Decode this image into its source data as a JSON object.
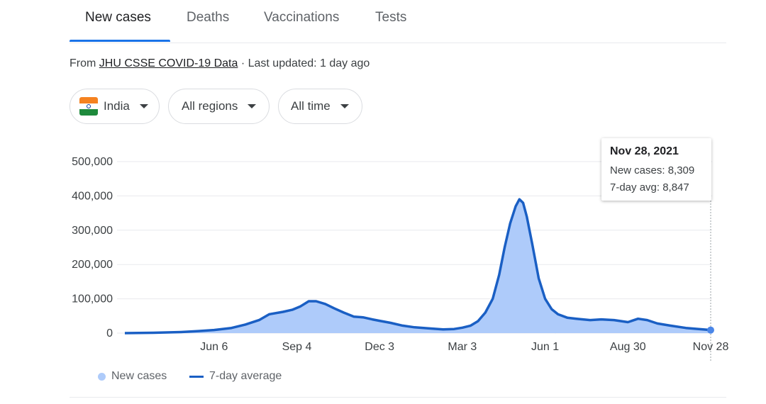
{
  "tabs": [
    {
      "label": "New cases",
      "active": true
    },
    {
      "label": "Deaths",
      "active": false
    },
    {
      "label": "Vaccinations",
      "active": false
    },
    {
      "label": "Tests",
      "active": false
    }
  ],
  "source": {
    "prefix": "From ",
    "link": "JHU CSSE COVID-19 Data",
    "suffix": " · Last updated: 1 day ago"
  },
  "filters": {
    "country": "India",
    "region": "All regions",
    "time": "All time"
  },
  "tooltip": {
    "date": "Nov 28, 2021",
    "new_cases": "New cases: 8,309",
    "avg": "7-day avg: 8,847"
  },
  "legend": {
    "new_cases": "New cases",
    "avg": "7-day average"
  },
  "colors": {
    "accent": "#1a73e8",
    "bars": "#aecbfa",
    "line": "#1a5fc4"
  },
  "chart_data": {
    "type": "area",
    "title": "",
    "xlabel": "",
    "ylabel": "",
    "ylim": [
      0,
      500000
    ],
    "y_ticks": [
      0,
      100000,
      200000,
      300000,
      400000,
      500000
    ],
    "y_tick_labels": [
      "0",
      "100,000",
      "200,000",
      "300,000",
      "400,000",
      "500,000"
    ],
    "x_ticks": [
      "2020-06-06",
      "2020-09-04",
      "2020-12-03",
      "2021-03-03",
      "2021-06-01",
      "2021-08-30",
      "2021-11-28"
    ],
    "x_tick_labels": [
      "Jun 6",
      "Sep 4",
      "Dec 3",
      "Mar 3",
      "Jun 1",
      "Aug 30",
      "Nov 28"
    ],
    "series": [
      {
        "name": "7-day average",
        "x": [
          "2020-03-01",
          "2020-04-01",
          "2020-05-01",
          "2020-05-20",
          "2020-06-06",
          "2020-06-25",
          "2020-07-10",
          "2020-07-25",
          "2020-08-05",
          "2020-08-20",
          "2020-08-30",
          "2020-09-08",
          "2020-09-17",
          "2020-09-25",
          "2020-10-05",
          "2020-10-15",
          "2020-10-25",
          "2020-11-05",
          "2020-11-15",
          "2020-11-25",
          "2020-12-03",
          "2020-12-15",
          "2020-12-28",
          "2021-01-10",
          "2021-01-25",
          "2021-02-10",
          "2021-02-22",
          "2021-03-03",
          "2021-03-12",
          "2021-03-20",
          "2021-03-28",
          "2021-04-05",
          "2021-04-12",
          "2021-04-18",
          "2021-04-24",
          "2021-04-30",
          "2021-05-04",
          "2021-05-08",
          "2021-05-12",
          "2021-05-18",
          "2021-05-25",
          "2021-06-01",
          "2021-06-08",
          "2021-06-15",
          "2021-06-25",
          "2021-07-05",
          "2021-07-20",
          "2021-08-01",
          "2021-08-15",
          "2021-08-30",
          "2021-09-10",
          "2021-09-20",
          "2021-10-01",
          "2021-10-15",
          "2021-11-01",
          "2021-11-15",
          "2021-11-28"
        ],
        "values": [
          0,
          1000,
          3000,
          6000,
          9000,
          15000,
          25000,
          38000,
          55000,
          62000,
          68000,
          78000,
          93000,
          93000,
          85000,
          72000,
          60000,
          48000,
          46000,
          40000,
          36000,
          30000,
          22000,
          17000,
          14000,
          11000,
          12000,
          16000,
          22000,
          35000,
          60000,
          100000,
          170000,
          250000,
          320000,
          370000,
          390000,
          380000,
          340000,
          260000,
          160000,
          100000,
          70000,
          55000,
          45000,
          42000,
          38000,
          40000,
          38000,
          32000,
          42000,
          38000,
          28000,
          22000,
          15000,
          12000,
          9000
        ]
      }
    ],
    "highlight": {
      "date": "2021-11-28",
      "new_cases": 8309,
      "avg": 8847
    }
  }
}
